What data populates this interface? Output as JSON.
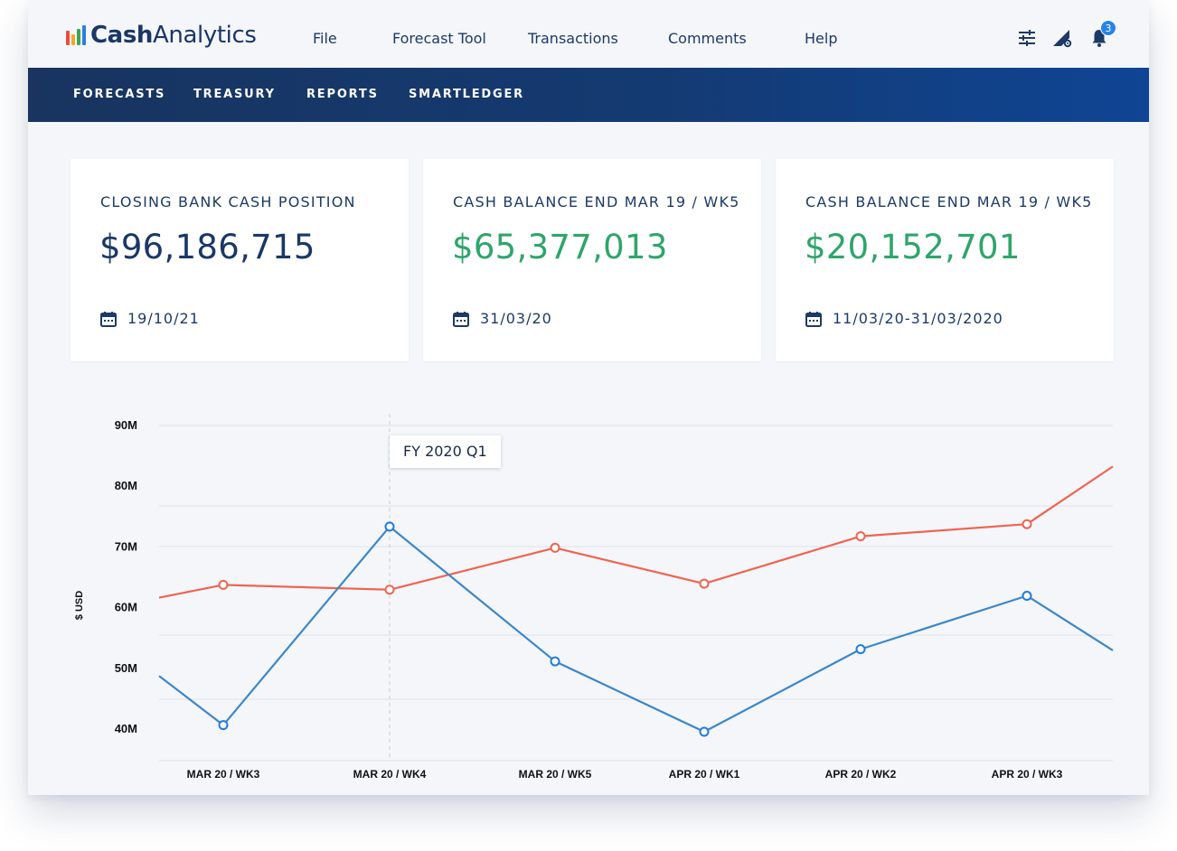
{
  "app": {
    "logo_bold": "Cash",
    "logo_light": "Analytics",
    "logo_bar_colors": [
      "#e94e3c",
      "#f5a623",
      "#3aa655",
      "#2b7de0"
    ]
  },
  "menu": [
    "File",
    "Forecast Tool",
    "Transactions",
    "Comments",
    "Help"
  ],
  "toolbar": {
    "icons": [
      "sliders-icon",
      "settings-triangle-icon",
      "bell-icon"
    ],
    "notification_count": "3"
  },
  "subnav": [
    "FORECASTS",
    "TREASURY",
    "REPORTS",
    "SMARTLEDGER"
  ],
  "cards": [
    {
      "label": "CLOSING BANK CASH POSITION",
      "value": "$96,186,715",
      "date": "19/10/21",
      "value_color": "#1a3766"
    },
    {
      "label": "CASH BALANCE END MAR 19 / WK5",
      "value": "$65,377,013",
      "date": "31/03/20",
      "value_color": "#2fa56b"
    },
    {
      "label": "CASH BALANCE END MAR 19 / WK5",
      "value": "$20,152,701",
      "date": "11/03/20-31/03/2020",
      "value_color": "#2fa56b"
    }
  ],
  "chart_data": {
    "type": "line",
    "ylabel": "$ USD",
    "xlabel": "",
    "ylim": [
      35,
      90
    ],
    "y_ticks": [
      "90M",
      "80M",
      "70M",
      "60M",
      "50M",
      "40M"
    ],
    "categories": [
      "MAR 20 / WK3",
      "MAR 20 / WK4",
      "MAR 20 / WK5",
      "APR 20 / WK1",
      "APR 20 / WK2",
      "APR 20 / WK3"
    ],
    "series": [
      {
        "color": "#ef6450",
        "values": [
          63.6,
          62.8,
          69.7,
          63.8,
          71.6,
          73.6
        ],
        "start": 61.5,
        "end": 83.1
      },
      {
        "color": "#3c87c8",
        "values": [
          40.5,
          73.2,
          51.0,
          39.4,
          53.0,
          61.8
        ],
        "start": 48.6,
        "end": 52.8
      }
    ],
    "annotation": {
      "label": "FY 2020 Q1",
      "category": "MAR 20 / WK4"
    },
    "grid": true,
    "legend": "none"
  }
}
